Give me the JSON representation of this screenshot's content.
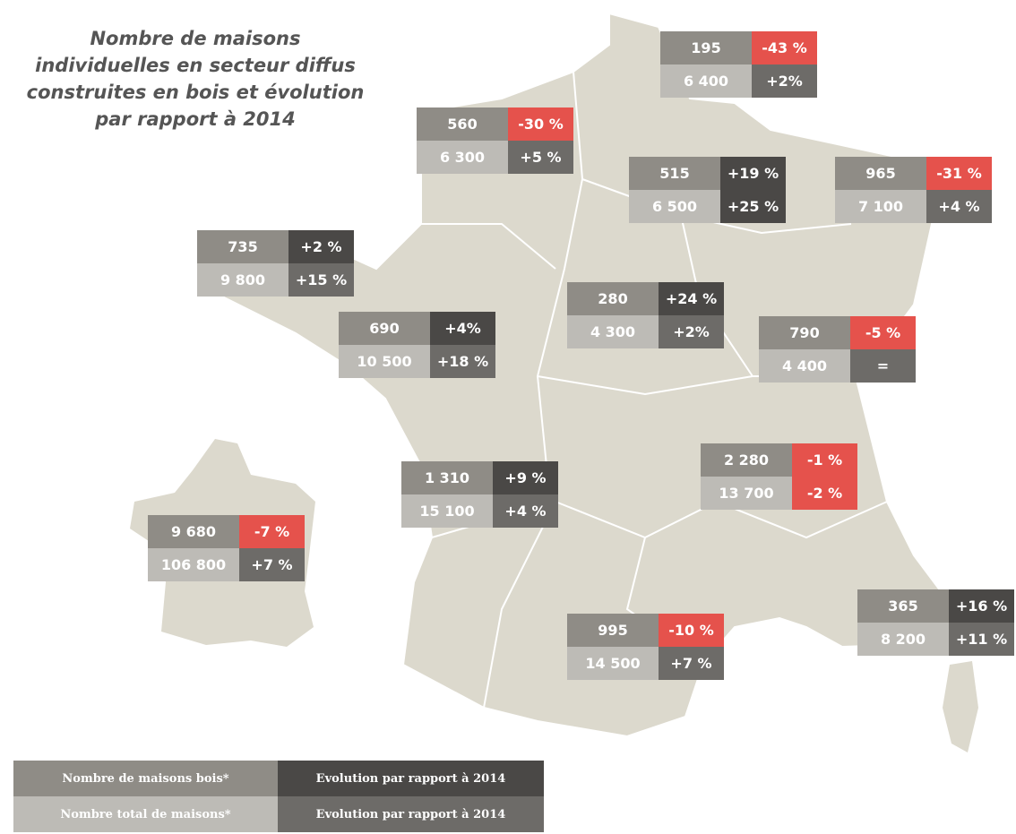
{
  "title": [
    "Nombre de maisons",
    "individuelles en secteur diffus",
    "construites en bois et évolution",
    "par rapport à 2014"
  ],
  "palette": {
    "wood": "#8f8c86",
    "total": "#bdbbb6",
    "dark": "#4a4846",
    "mid": "#6d6b68",
    "red": "#e5524c"
  },
  "regions": [
    {
      "wood": "195",
      "wood_change": "-43 %",
      "wood_change_color": "red",
      "total": "6 400",
      "total_change": "+2%",
      "total_change_color": "mid"
    },
    {
      "wood": "560",
      "wood_change": "-30 %",
      "wood_change_color": "red",
      "total": "6 300",
      "total_change": "+5 %",
      "total_change_color": "mid"
    },
    {
      "wood": "515",
      "wood_change": "+19 %",
      "wood_change_color": "dark",
      "total": "6 500",
      "total_change": "+25 %",
      "total_change_color": "dark"
    },
    {
      "wood": "965",
      "wood_change": "-31 %",
      "wood_change_color": "red",
      "total": "7 100",
      "total_change": "+4 %",
      "total_change_color": "mid"
    },
    {
      "wood": "735",
      "wood_change": "+2 %",
      "wood_change_color": "dark",
      "total": "9 800",
      "total_change": "+15 %",
      "total_change_color": "mid"
    },
    {
      "wood": "690",
      "wood_change": "+4%",
      "wood_change_color": "dark",
      "total": "10 500",
      "total_change": "+18 %",
      "total_change_color": "mid"
    },
    {
      "wood": "280",
      "wood_change": "+24 %",
      "wood_change_color": "dark",
      "total": "4 300",
      "total_change": "+2%",
      "total_change_color": "mid"
    },
    {
      "wood": "790",
      "wood_change": "-5 %",
      "wood_change_color": "red",
      "total": "4 400",
      "total_change": "=",
      "total_change_color": "mid"
    },
    {
      "wood": "2 280",
      "wood_change": "-1 %",
      "wood_change_color": "red",
      "total": "13 700",
      "total_change": "-2 %",
      "total_change_color": "red"
    },
    {
      "wood": "1 310",
      "wood_change": "+9 %",
      "wood_change_color": "dark",
      "total": "15 100",
      "total_change": "+4 %",
      "total_change_color": "mid"
    },
    {
      "wood": "9 680",
      "wood_change": "-7 %",
      "wood_change_color": "red",
      "total": "106 800",
      "total_change": "+7 %",
      "total_change_color": "mid"
    },
    {
      "wood": "365",
      "wood_change": "+16 %",
      "wood_change_color": "dark",
      "total": "8 200",
      "total_change": "+11 %",
      "total_change_color": "mid"
    },
    {
      "wood": "995",
      "wood_change": "-10 %",
      "wood_change_color": "red",
      "total": "14 500",
      "total_change": "+7 %",
      "total_change_color": "mid"
    }
  ],
  "legend": {
    "wood": "Nombre de maisons bois*",
    "wood_change": "Evolution par rapport à 2014",
    "total": "Nombre total de maisons*",
    "total_change": "Evolution par rapport à 2014"
  }
}
